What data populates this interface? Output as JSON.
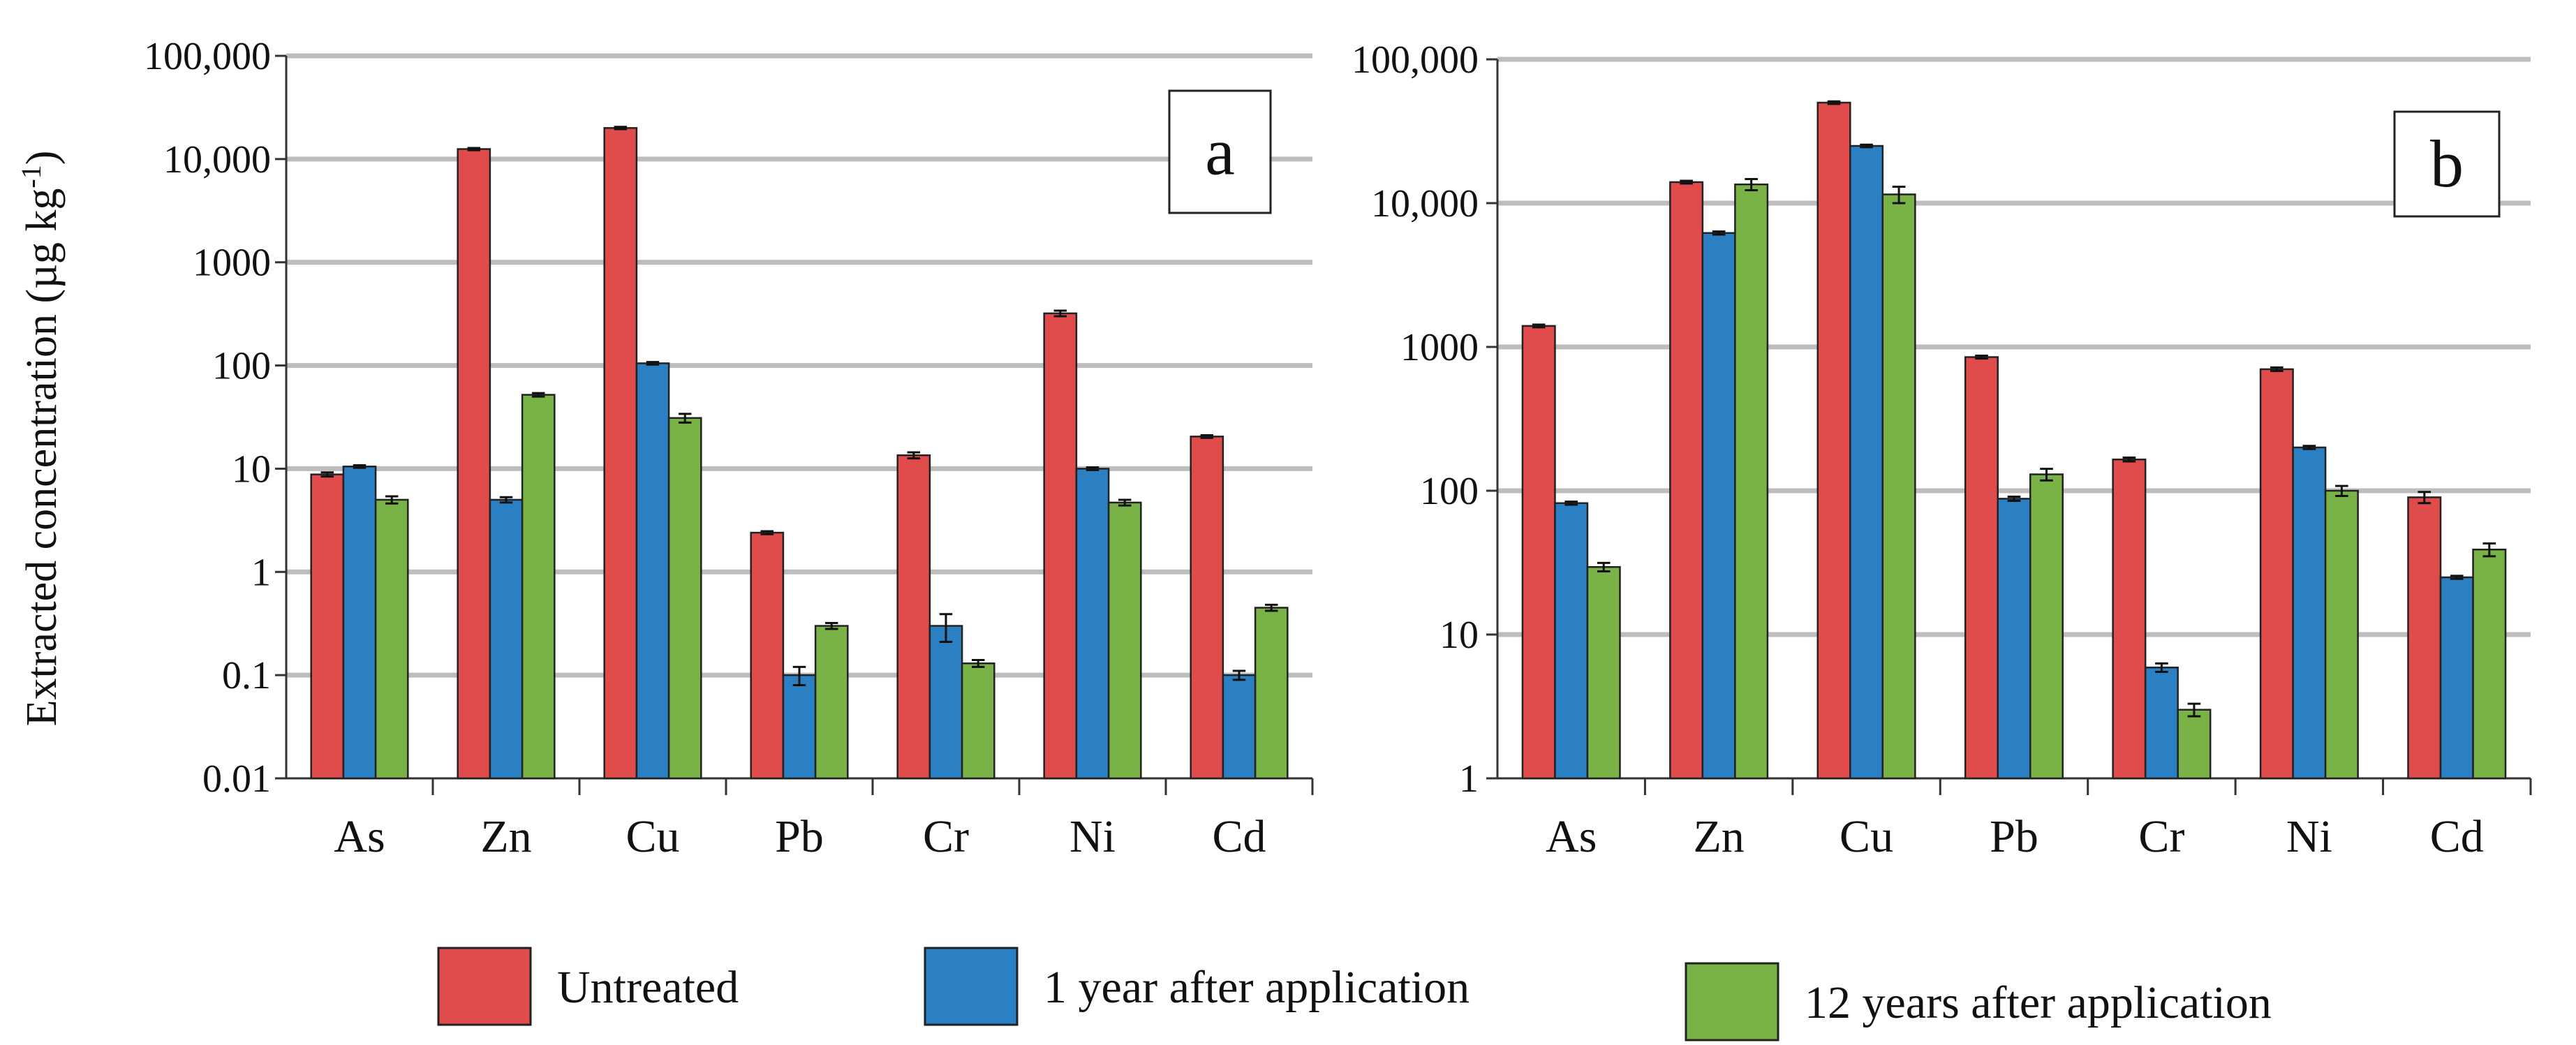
{
  "figure": {
    "ylabel_main": "Extracted concentration (µg kg",
    "ylabel_exp": "-1",
    "ylabel_close": ")"
  },
  "legend": [
    {
      "label": "Untreated",
      "color": "#e04b4b"
    },
    {
      "label": "1 year after application",
      "color": "#2a80c2"
    },
    {
      "label": "12 years after application",
      "color": "#79b347"
    }
  ],
  "chart_data": [
    {
      "type": "bar",
      "panel": "a",
      "yscale": "log",
      "ylim": [
        0.01,
        100000
      ],
      "yticks": [
        {
          "value": 100000,
          "label": "100,000"
        },
        {
          "value": 10000,
          "label": "10,000"
        },
        {
          "value": 1000,
          "label": "1000"
        },
        {
          "value": 100,
          "label": "100"
        },
        {
          "value": 10,
          "label": "10"
        },
        {
          "value": 1,
          "label": "1"
        },
        {
          "value": 0.1,
          "label": "0.1"
        },
        {
          "value": 0.01,
          "label": "0.01"
        }
      ],
      "categories": [
        "As",
        "Zn",
        "Cu",
        "Pb",
        "Cr",
        "Ni",
        "Cd"
      ],
      "series": [
        {
          "name": "Untreated",
          "values": [
            8.8,
            12500,
            20000,
            2.4,
            13.5,
            320,
            20.5
          ],
          "errors": [
            0.4,
            300,
            500,
            0.08,
            0.9,
            20,
            0.6
          ]
        },
        {
          "name": "1 year after application",
          "values": [
            10.5,
            5.0,
            105,
            0.1,
            0.3,
            10,
            0.1
          ],
          "errors": [
            0.3,
            0.3,
            3,
            0.02,
            0.09,
            0.3,
            0.01
          ]
        },
        {
          "name": "12 years after application",
          "values": [
            5.0,
            52,
            31,
            0.3,
            0.13,
            4.7,
            0.45
          ],
          "errors": [
            0.4,
            2,
            3,
            0.02,
            0.01,
            0.3,
            0.03
          ]
        }
      ]
    },
    {
      "type": "bar",
      "panel": "b",
      "yscale": "log",
      "ylim": [
        1,
        100000
      ],
      "yticks": [
        {
          "value": 100000,
          "label": "100,000"
        },
        {
          "value": 10000,
          "label": "10,000"
        },
        {
          "value": 1000,
          "label": "1000"
        },
        {
          "value": 100,
          "label": "100"
        },
        {
          "value": 10,
          "label": "10"
        },
        {
          "value": 1,
          "label": "1"
        }
      ],
      "categories": [
        "As",
        "Zn",
        "Cu",
        "Pb",
        "Cr",
        "Ni",
        "Cd"
      ],
      "series": [
        {
          "name": "Untreated",
          "values": [
            1400,
            14000,
            50000,
            850,
            165,
            700,
            90
          ],
          "errors": [
            30,
            300,
            1000,
            20,
            5,
            20,
            8
          ]
        },
        {
          "name": "1 year after application",
          "values": [
            82,
            6200,
            25000,
            88,
            5.9,
            200,
            25
          ],
          "errors": [
            2,
            150,
            500,
            3,
            0.4,
            5,
            0.6
          ]
        },
        {
          "name": "12 years after application",
          "values": [
            29.5,
            13500,
            11500,
            130,
            3.0,
            100,
            39
          ],
          "errors": [
            2,
            1200,
            1500,
            12,
            0.3,
            8,
            4
          ]
        }
      ]
    }
  ]
}
